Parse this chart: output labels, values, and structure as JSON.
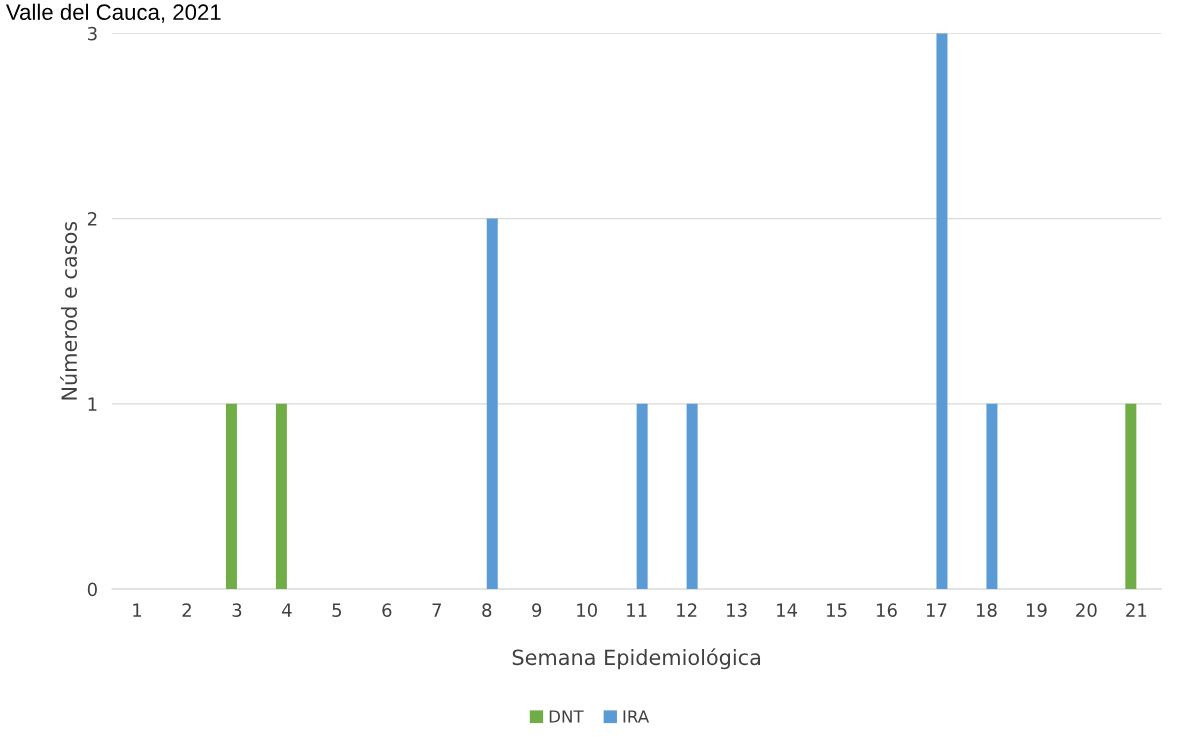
{
  "chart_data": {
    "type": "bar",
    "title": "Valle del Cauca, 2021",
    "xlabel": "Semana Epidemiológica",
    "ylabel": "Númerod e casos",
    "categories": [
      "1",
      "2",
      "3",
      "4",
      "5",
      "6",
      "7",
      "8",
      "9",
      "10",
      "11",
      "12",
      "13",
      "14",
      "15",
      "16",
      "17",
      "18",
      "19",
      "20",
      "21"
    ],
    "series": [
      {
        "name": "DNT",
        "color": "#70ad47",
        "values": [
          0,
          0,
          1,
          1,
          0,
          0,
          0,
          0,
          0,
          0,
          0,
          0,
          0,
          0,
          0,
          0,
          0,
          0,
          0,
          0,
          1
        ]
      },
      {
        "name": "IRA",
        "color": "#5b9bd5",
        "values": [
          0,
          0,
          0,
          0,
          0,
          0,
          0,
          2,
          0,
          0,
          1,
          1,
          0,
          0,
          0,
          0,
          3,
          1,
          0,
          0,
          0
        ]
      }
    ],
    "ylim": [
      0,
      3
    ],
    "yticks": [
      0,
      1,
      2,
      3
    ],
    "grid": "y",
    "legend": "bottom"
  }
}
